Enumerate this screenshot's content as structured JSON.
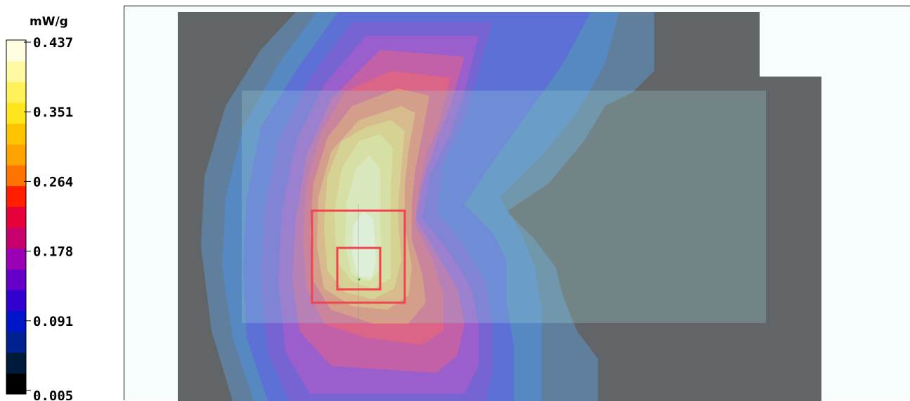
{
  "chart_data": {
    "type": "heatmap",
    "colorbar": {
      "unit": "mW/g",
      "ticks": [
        "0.437",
        "0.351",
        "0.264",
        "0.178",
        "0.091",
        "0.005"
      ],
      "range": [
        0.005,
        0.437
      ],
      "bands": [
        "#000000",
        "#001a3a",
        "#00218f",
        "#0015c8",
        "#3200cf",
        "#6400c8",
        "#9b00b4",
        "#c8006e",
        "#e6003c",
        "#ff1e00",
        "#ff7300",
        "#ffa300",
        "#ffc400",
        "#ffe51e",
        "#fff15a",
        "#fff9a3",
        "#fffee0"
      ]
    },
    "peak_value": 0.437
  },
  "overlay_boxes": [
    "zoom-scan-region",
    "zoom-scan-inner-cube"
  ]
}
